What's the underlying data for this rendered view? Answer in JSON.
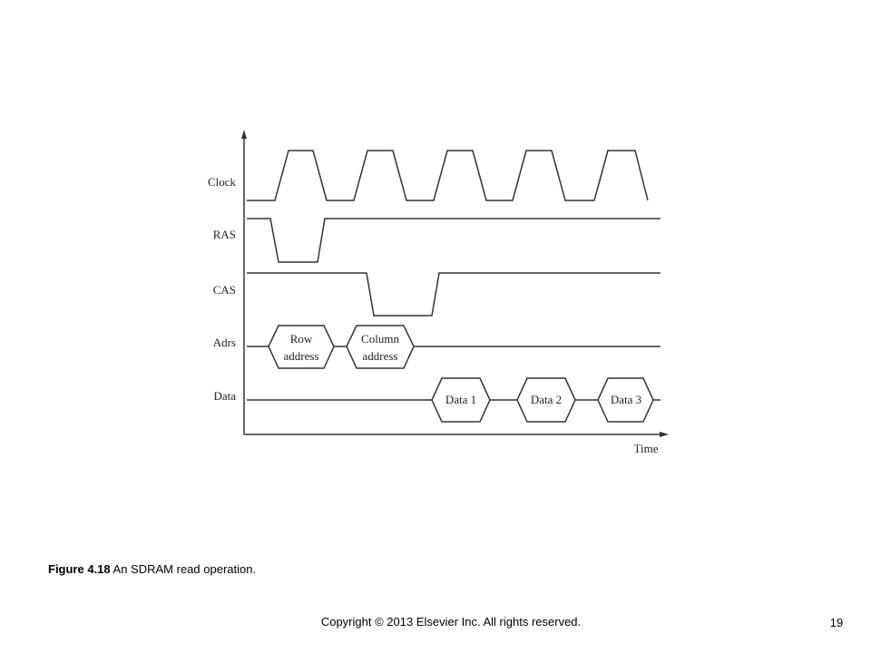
{
  "diagram": {
    "signals": [
      {
        "label": "Clock"
      },
      {
        "label": "RAS"
      },
      {
        "label": "CAS"
      },
      {
        "label": "Adrs",
        "bubbles": [
          [
            "Row",
            "address"
          ],
          [
            "Column",
            "address"
          ]
        ]
      },
      {
        "label": "Data",
        "bubbles": [
          [
            "Data 1"
          ],
          [
            "Data 2"
          ],
          [
            "Data 3"
          ]
        ]
      }
    ],
    "x_axis_label": "Time"
  },
  "caption": {
    "figure": "Figure 4.18",
    "text": "An SDRAM read operation."
  },
  "footer": {
    "copyright": "Copyright © 2013 Elsevier Inc. All rights reserved.",
    "page_number": 19
  }
}
